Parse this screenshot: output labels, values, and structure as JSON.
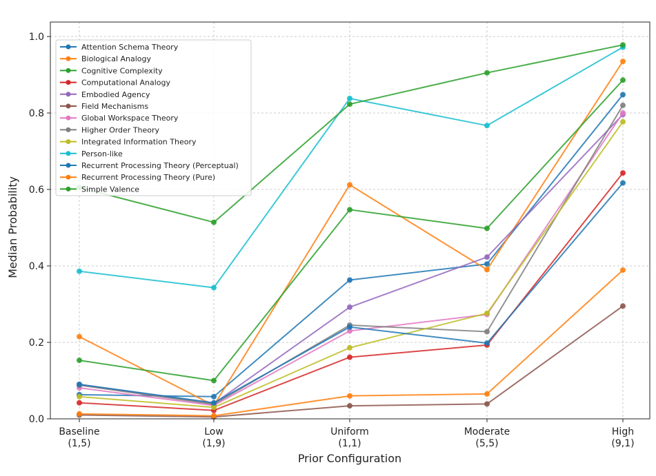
{
  "chart_data": {
    "type": "line",
    "title": "",
    "xlabel": "Prior Configuration",
    "ylabel": "Median Probability",
    "ylim": [
      0,
      1.0
    ],
    "yticks": [
      "0.0",
      "0.2",
      "0.4",
      "0.6",
      "0.8",
      "1.0"
    ],
    "grid": true,
    "legend_position": "top-left",
    "categories": [
      {
        "name": "Baseline",
        "params": "(1,5)"
      },
      {
        "name": "Low",
        "params": "(1,9)"
      },
      {
        "name": "Uniform",
        "params": "(1,1)"
      },
      {
        "name": "Moderate",
        "params": "(5,5)"
      },
      {
        "name": "High",
        "params": "(9,1)"
      }
    ],
    "series": [
      {
        "name": "Attention Schema Theory",
        "color": "#1f77b4",
        "values": [
          0.063,
          0.058,
          0.363,
          0.405,
          0.848
        ]
      },
      {
        "name": "Biological Analogy",
        "color": "#ff7f0e",
        "values": [
          0.215,
          0.035,
          0.612,
          0.39,
          0.935
        ]
      },
      {
        "name": "Cognitive Complexity",
        "color": "#2ca02c",
        "values": [
          0.153,
          0.1,
          0.547,
          0.498,
          0.886
        ]
      },
      {
        "name": "Computational Analogy",
        "color": "#d62728",
        "values": [
          0.042,
          0.022,
          0.161,
          0.193,
          0.643
        ]
      },
      {
        "name": "Embodied Agency",
        "color": "#9467bd",
        "values": [
          0.09,
          0.04,
          0.292,
          0.423,
          0.796
        ]
      },
      {
        "name": "Field Mechanisms",
        "color": "#8c564b",
        "values": [
          0.01,
          0.005,
          0.034,
          0.039,
          0.295
        ]
      },
      {
        "name": "Global Workspace Theory",
        "color": "#e377c2",
        "values": [
          0.081,
          0.035,
          0.23,
          0.273,
          0.8
        ]
      },
      {
        "name": "Higher Order Theory",
        "color": "#7f7f7f",
        "values": [
          0.088,
          0.038,
          0.245,
          0.228,
          0.82
        ]
      },
      {
        "name": "Integrated Information Theory",
        "color": "#bcbd22",
        "values": [
          0.058,
          0.03,
          0.186,
          0.276,
          0.777
        ]
      },
      {
        "name": "Person-like",
        "color": "#17becf",
        "values": [
          0.386,
          0.343,
          0.838,
          0.767,
          0.972
        ]
      },
      {
        "name": "Recurrent Processing Theory (Perceptual)",
        "color": "#1f77b4",
        "values": [
          0.09,
          0.042,
          0.24,
          0.198,
          0.617
        ]
      },
      {
        "name": "Recurrent Processing Theory (Pure)",
        "color": "#ff7f0e",
        "values": [
          0.013,
          0.008,
          0.06,
          0.065,
          0.389
        ]
      },
      {
        "name": "Simple Valence",
        "color": "#2ca02c",
        "values": [
          0.605,
          0.514,
          0.823,
          0.905,
          0.978
        ]
      }
    ]
  }
}
